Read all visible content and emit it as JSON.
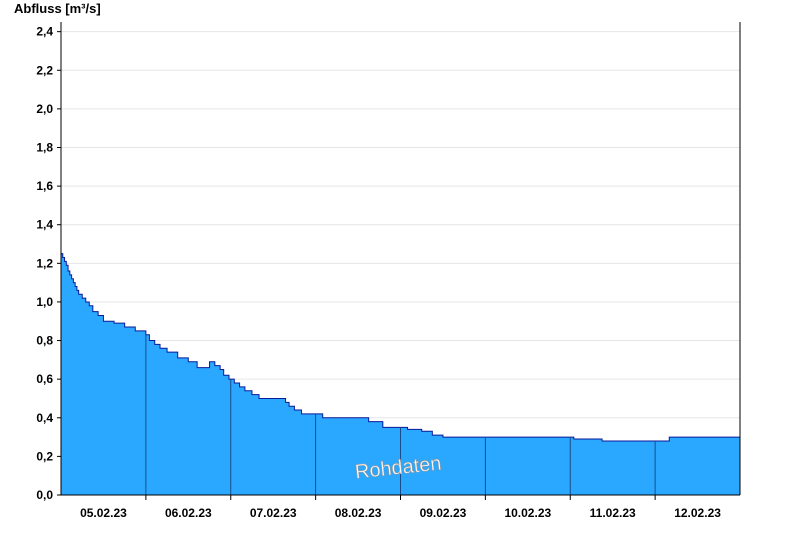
{
  "chart_data": {
    "type": "area",
    "ylabel": "Abfluss [m³/s]",
    "ylim": [
      0,
      2.45
    ],
    "yticks": [
      {
        "value": 0.0,
        "label": "0,0"
      },
      {
        "value": 0.2,
        "label": "0,2"
      },
      {
        "value": 0.4,
        "label": "0,4"
      },
      {
        "value": 0.6,
        "label": "0,6"
      },
      {
        "value": 0.8,
        "label": "0,8"
      },
      {
        "value": 1.0,
        "label": "1,0"
      },
      {
        "value": 1.2,
        "label": "1,2"
      },
      {
        "value": 1.4,
        "label": "1,4"
      },
      {
        "value": 1.6,
        "label": "1,6"
      },
      {
        "value": 1.8,
        "label": "1,8"
      },
      {
        "value": 2.0,
        "label": "2,0"
      },
      {
        "value": 2.2,
        "label": "2,2"
      },
      {
        "value": 2.4,
        "label": "2,4"
      }
    ],
    "xlim": [
      "2023-02-04T12:00",
      "2023-02-12T12:00"
    ],
    "xticks": [
      {
        "value": "2023-02-05T00:00",
        "label": "05.02.23"
      },
      {
        "value": "2023-02-06T00:00",
        "label": "06.02.23"
      },
      {
        "value": "2023-02-07T00:00",
        "label": "07.02.23"
      },
      {
        "value": "2023-02-08T00:00",
        "label": "08.02.23"
      },
      {
        "value": "2023-02-09T00:00",
        "label": "09.02.23"
      },
      {
        "value": "2023-02-10T00:00",
        "label": "10.02.23"
      },
      {
        "value": "2023-02-11T00:00",
        "label": "11.02.23"
      },
      {
        "value": "2023-02-12T00:00",
        "label": "12.02.23"
      }
    ],
    "day_separators": [
      "2023-02-05T12:00",
      "2023-02-06T12:00",
      "2023-02-07T12:00",
      "2023-02-08T12:00",
      "2023-02-09T12:00",
      "2023-02-10T12:00",
      "2023-02-11T12:00"
    ],
    "grid": "horizontal",
    "watermark": "Rohdaten",
    "colors": {
      "fill": "#2aa7ff",
      "line": "#0a1a9a",
      "separator": "#1a4c8a",
      "grid": "#e6e6e6"
    },
    "series": [
      {
        "step": true,
        "x": [
          "2023-02-04T12:00",
          "2023-02-04T12:30",
          "2023-02-04T13:00",
          "2023-02-04T13:30",
          "2023-02-04T14:00",
          "2023-02-04T14:30",
          "2023-02-04T15:00",
          "2023-02-04T15:30",
          "2023-02-04T16:00",
          "2023-02-04T16:30",
          "2023-02-04T17:00",
          "2023-02-04T18:00",
          "2023-02-04T19:00",
          "2023-02-04T20:00",
          "2023-02-04T21:00",
          "2023-02-04T22:30",
          "2023-02-05T00:00",
          "2023-02-05T03:00",
          "2023-02-05T06:00",
          "2023-02-05T09:00",
          "2023-02-05T12:00",
          "2023-02-05T13:00",
          "2023-02-05T14:30",
          "2023-02-05T16:00",
          "2023-02-05T18:00",
          "2023-02-05T21:00",
          "2023-02-06T00:00",
          "2023-02-06T02:30",
          "2023-02-06T03:30",
          "2023-02-06T06:00",
          "2023-02-06T07:30",
          "2023-02-06T09:00",
          "2023-02-06T10:00",
          "2023-02-06T11:30",
          "2023-02-06T13:00",
          "2023-02-06T14:30",
          "2023-02-06T16:00",
          "2023-02-06T18:00",
          "2023-02-06T20:00",
          "2023-02-07T00:00",
          "2023-02-07T03:30",
          "2023-02-07T04:30",
          "2023-02-07T06:00",
          "2023-02-07T08:00",
          "2023-02-07T12:00",
          "2023-02-07T14:00",
          "2023-02-07T17:00",
          "2023-02-07T22:00",
          "2023-02-08T00:00",
          "2023-02-08T03:00",
          "2023-02-08T07:00",
          "2023-02-08T12:00",
          "2023-02-08T14:00",
          "2023-02-08T16:00",
          "2023-02-08T18:00",
          "2023-02-08T21:00",
          "2023-02-09T00:00",
          "2023-02-09T12:00",
          "2023-02-09T15:30",
          "2023-02-09T21:00",
          "2023-02-10T00:00",
          "2023-02-10T12:00",
          "2023-02-10T13:00",
          "2023-02-10T21:00",
          "2023-02-11T00:00",
          "2023-02-11T12:00",
          "2023-02-11T16:00",
          "2023-02-12T00:00",
          "2023-02-12T12:00"
        ],
        "y": [
          1.25,
          1.23,
          1.21,
          1.19,
          1.16,
          1.14,
          1.12,
          1.1,
          1.08,
          1.06,
          1.04,
          1.02,
          1.0,
          0.98,
          0.95,
          0.93,
          0.9,
          0.89,
          0.87,
          0.85,
          0.83,
          0.8,
          0.78,
          0.76,
          0.74,
          0.71,
          0.69,
          0.66,
          0.66,
          0.69,
          0.67,
          0.65,
          0.62,
          0.6,
          0.58,
          0.56,
          0.54,
          0.52,
          0.5,
          0.5,
          0.48,
          0.46,
          0.44,
          0.42,
          0.42,
          0.4,
          0.4,
          0.4,
          0.4,
          0.38,
          0.35,
          0.35,
          0.34,
          0.34,
          0.33,
          0.31,
          0.3,
          0.3,
          0.3,
          0.3,
          0.3,
          0.3,
          0.29,
          0.28,
          0.28,
          0.28,
          0.3,
          0.3,
          0.3
        ]
      }
    ]
  }
}
